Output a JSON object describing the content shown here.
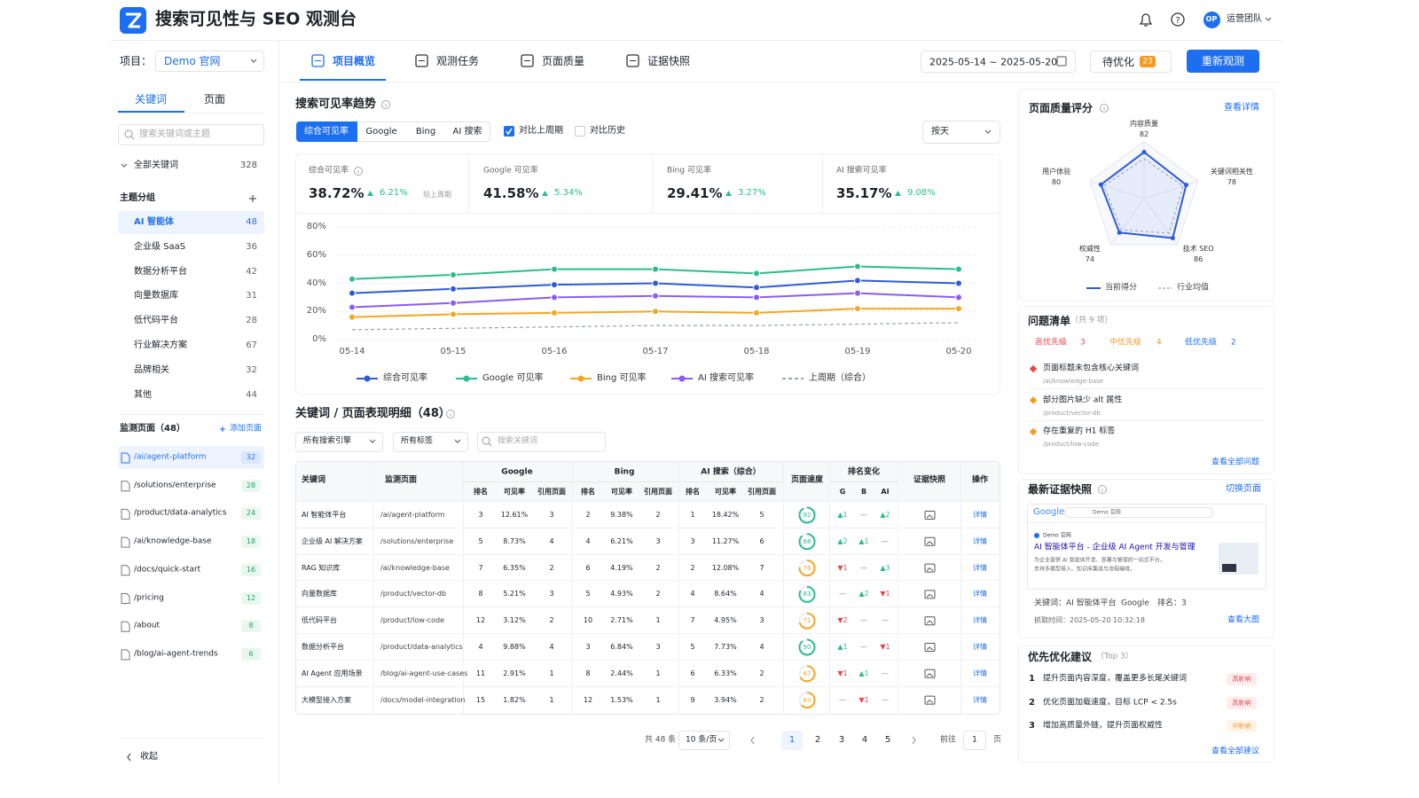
{
  "header": {
    "title": "搜索可见性与 SEO 观测台",
    "avatar": "OP",
    "team": "运营团队"
  },
  "toolbar": {
    "project_label": "项目：",
    "project": "Demo 官网",
    "tabs": [
      "项目概览",
      "观测任务",
      "页面质量",
      "证据快照"
    ],
    "date_range": "2025-05-14 ~ 2025-05-20",
    "pending_label": "待优化",
    "pending_count": 23,
    "refresh": "重新观测"
  },
  "sidebar": {
    "tabs": [
      "关键词",
      "页面"
    ],
    "search_placeholder": "搜索关键词或主题",
    "all_label": "全部关键词",
    "all_count": 328,
    "group_title": "主题分组",
    "groups": [
      {
        "name": "AI 智能体",
        "count": 48
      },
      {
        "name": "企业级 SaaS",
        "count": 36
      },
      {
        "name": "数据分析平台",
        "count": 42
      },
      {
        "name": "向量数据库",
        "count": 31
      },
      {
        "name": "低代码平台",
        "count": 28
      },
      {
        "name": "行业解决方案",
        "count": 67
      },
      {
        "name": "品牌相关",
        "count": 32
      },
      {
        "name": "其他",
        "count": 44
      }
    ],
    "pages_title": "监测页面（48）",
    "add_page": "添加页面",
    "pages": [
      {
        "path": "/ai/agent-platform",
        "count": 32
      },
      {
        "path": "/solutions/enterprise",
        "count": 28
      },
      {
        "path": "/product/data-analytics",
        "count": 24
      },
      {
        "path": "/ai/knowledge-base",
        "count": 18
      },
      {
        "path": "/docs/quick-start",
        "count": 16
      },
      {
        "path": "/pricing",
        "count": 12
      },
      {
        "path": "/about",
        "count": 8
      },
      {
        "path": "/blog/ai-agent-trends",
        "count": 6
      }
    ],
    "collapse": "收起"
  },
  "trend": {
    "title": "搜索可见率趋势",
    "filters": [
      "综合可见率",
      "Google",
      "Bing",
      "AI 搜索"
    ],
    "compare": [
      {
        "label": "对比上周期",
        "checked": true
      },
      {
        "label": "对比历史",
        "checked": false
      }
    ],
    "granularity": "按天",
    "kpis": [
      {
        "label": "综合可见率",
        "value": "38.72%",
        "delta": "6.21%"
      },
      {
        "label": "Google 可见率",
        "value": "41.58%",
        "delta": "5.34%"
      },
      {
        "label": "Bing 可见率",
        "value": "29.41%",
        "delta": "3.27%"
      },
      {
        "label": "AI 搜索可见率",
        "value": "35.17%",
        "delta": "9.08%"
      }
    ],
    "kpi_note": "较上周期",
    "chart": {
      "type": "line",
      "x": [
        "05-14",
        "05-15",
        "05-16",
        "05-17",
        "05-18",
        "05-19",
        "05-20"
      ],
      "ylim": [
        0,
        80
      ],
      "yticks": [
        {
          "value": 0,
          "label": "0%"
        },
        {
          "value": 20,
          "label": "20%"
        },
        {
          "value": 40,
          "label": "40%"
        },
        {
          "value": 60,
          "label": "60%"
        },
        {
          "value": 80,
          "label": "80%"
        }
      ],
      "grid": true,
      "series": [
        {
          "name": "综合可见率",
          "color": "#2f5bd8",
          "values": [
            33,
            36,
            39,
            40,
            37,
            42,
            40
          ]
        },
        {
          "name": "Google 可见率",
          "color": "#2bbd8a",
          "values": [
            43,
            46,
            50,
            50,
            47,
            52,
            50
          ]
        },
        {
          "name": "Bing 可见率",
          "color": "#f5a623",
          "values": [
            16,
            18,
            19,
            20,
            19,
            22,
            22
          ]
        },
        {
          "name": "AI 搜索可见率",
          "color": "#8b5cf6",
          "values": [
            23,
            26,
            30,
            31,
            30,
            33,
            30
          ]
        },
        {
          "name": "上周期（综合）",
          "color": "#9aa3af",
          "dashed": true,
          "markers": false,
          "values": [
            7,
            8,
            9,
            10,
            10,
            11,
            12
          ]
        }
      ]
    }
  },
  "detail": {
    "title": "关键词 / 页面表现明细（48）",
    "filters": [
      "所有搜索引擎",
      "所有标签"
    ],
    "search_placeholder": "搜索关键词",
    "columns": [
      "关键词",
      "监测页面"
    ],
    "groups": [
      {
        "name": "Google",
        "sub": [
          "排名",
          "可见率",
          "引用页面"
        ]
      },
      {
        "name": "Bing",
        "sub": [
          "排名",
          "可见率",
          "引用页面"
        ]
      },
      {
        "name": "AI 搜索（综合）",
        "sub": [
          "排名",
          "可见率",
          "引用页面"
        ]
      }
    ],
    "speed": "页面速度",
    "change": "排名变化",
    "change_sub": [
      "G",
      "B",
      "AI"
    ],
    "snapshot": "证据快照",
    "action": "操作",
    "action_label": "详情",
    "rows": [
      [
        "AI 智能体平台",
        "/ai/agent-platform",
        3,
        "12.61%",
        3,
        2,
        "9.38%",
        2,
        1,
        "18.42%",
        5,
        92,
        "▲1",
        "—",
        "▲2"
      ],
      [
        "企业级 AI 解决方案",
        "/solutions/enterprise",
        5,
        "8.73%",
        4,
        4,
        "6.21%",
        3,
        3,
        "11.27%",
        6,
        88,
        "▲2",
        "▲1",
        "—"
      ],
      [
        "RAG 知识库",
        "/ai/knowledge-base",
        7,
        "6.35%",
        2,
        6,
        "4.19%",
        2,
        2,
        "12.08%",
        7,
        76,
        "▼1",
        "—",
        "▲3"
      ],
      [
        "向量数据库",
        "/product/vector-db",
        8,
        "5.21%",
        3,
        5,
        "4.93%",
        2,
        4,
        "8.64%",
        4,
        83,
        "—",
        "▲2",
        "▼1"
      ],
      [
        "低代码平台",
        "/product/low-code",
        12,
        "3.12%",
        2,
        10,
        "2.71%",
        1,
        7,
        "4.95%",
        3,
        71,
        "▼2",
        "—",
        "—"
      ],
      [
        "数据分析平台",
        "/product/data-analytics",
        4,
        "9.88%",
        4,
        3,
        "6.84%",
        3,
        5,
        "7.73%",
        4,
        90,
        "▲1",
        "—",
        "▼1"
      ],
      [
        "AI Agent 应用场景",
        "/blog/ai-agent-use-cases",
        11,
        "2.91%",
        1,
        8,
        "2.44%",
        1,
        6,
        "6.33%",
        2,
        67,
        "▼1",
        "▲1",
        "—"
      ],
      [
        "大模型接入方案",
        "/docs/model-integration",
        15,
        "1.82%",
        1,
        12,
        "1.53%",
        1,
        9,
        "3.94%",
        2,
        63,
        "—",
        "▼1",
        "—"
      ]
    ],
    "pagination": {
      "total": "共 48 条",
      "page_size": "10 条/页",
      "pages": [
        1,
        2,
        3,
        4,
        5
      ],
      "goto": "前往",
      "goto_value": 1,
      "unit": "页"
    }
  },
  "quality": {
    "title": "页面质量评分",
    "link": "查看详情",
    "chart": {
      "type": "radar",
      "axes": [
        "内容质量",
        "关键词相关性",
        "技术 SEO",
        "权威性",
        "用户体验"
      ],
      "rlim": [
        0,
        100
      ],
      "series": [
        {
          "name": "当前得分",
          "color": "#2f5bd8",
          "values": [
            82,
            78,
            86,
            74,
            80
          ]
        },
        {
          "name": "行业均值",
          "color": "#9aa3af",
          "dashed": true,
          "values": [
            70,
            72,
            75,
            68,
            74
          ]
        }
      ]
    }
  },
  "issues": {
    "title": "问题清单",
    "count": "（共 9 项）",
    "priorities": [
      {
        "label": "高优先级",
        "count": 3,
        "color": "#e5484d"
      },
      {
        "label": "中优先级",
        "count": 4,
        "color": "#f59a23"
      },
      {
        "label": "低优先级",
        "count": 2,
        "color": "#1d6ff2"
      }
    ],
    "items": [
      {
        "title": "页面标题未包含核心关键词",
        "path": "/ai/knowledge-base",
        "color": "#e5484d"
      },
      {
        "title": "部分图片缺少 alt 属性",
        "path": "/product/vector-db",
        "color": "#f59a23"
      },
      {
        "title": "存在重复的 H1 标签",
        "path": "/product/low-code",
        "color": "#f59a23"
      }
    ],
    "link": "查看全部问题"
  },
  "snapshot": {
    "title": "最新证据快照",
    "link": "切换页面",
    "preview": {
      "engine": "Google",
      "query": "Demo 官网",
      "site": "Demo 官网",
      "result_title": "AI 智能体平台 - 企业级 AI Agent 开发与管理",
      "snippet": [
        "为企业提供 AI 智能体开发、部署与管理的一站式平台，",
        "支持多模型接入、知识库集成与流程编排。"
      ]
    },
    "keyword": "关键词：AI 智能体平台",
    "engine": "Google",
    "rank": "排名：3",
    "crawl_time": "抓取时间：2025-05-20 10:32:18",
    "view": "查看大图"
  },
  "suggestions": {
    "title": "优先优化建议",
    "sub": "（Top 3）",
    "items": [
      {
        "no": 1,
        "text": "提升页面内容深度，覆盖更多长尾关键词",
        "impact": "高影响",
        "color": "#e5484d"
      },
      {
        "no": 2,
        "text": "优化页面加载速度，目标 LCP < 2.5s",
        "impact": "高影响",
        "color": "#e5484d"
      },
      {
        "no": 3,
        "text": "增加高质量外链，提升页面权威性",
        "impact": "中影响",
        "color": "#f59a23"
      }
    ],
    "link": "查看全部建议"
  }
}
